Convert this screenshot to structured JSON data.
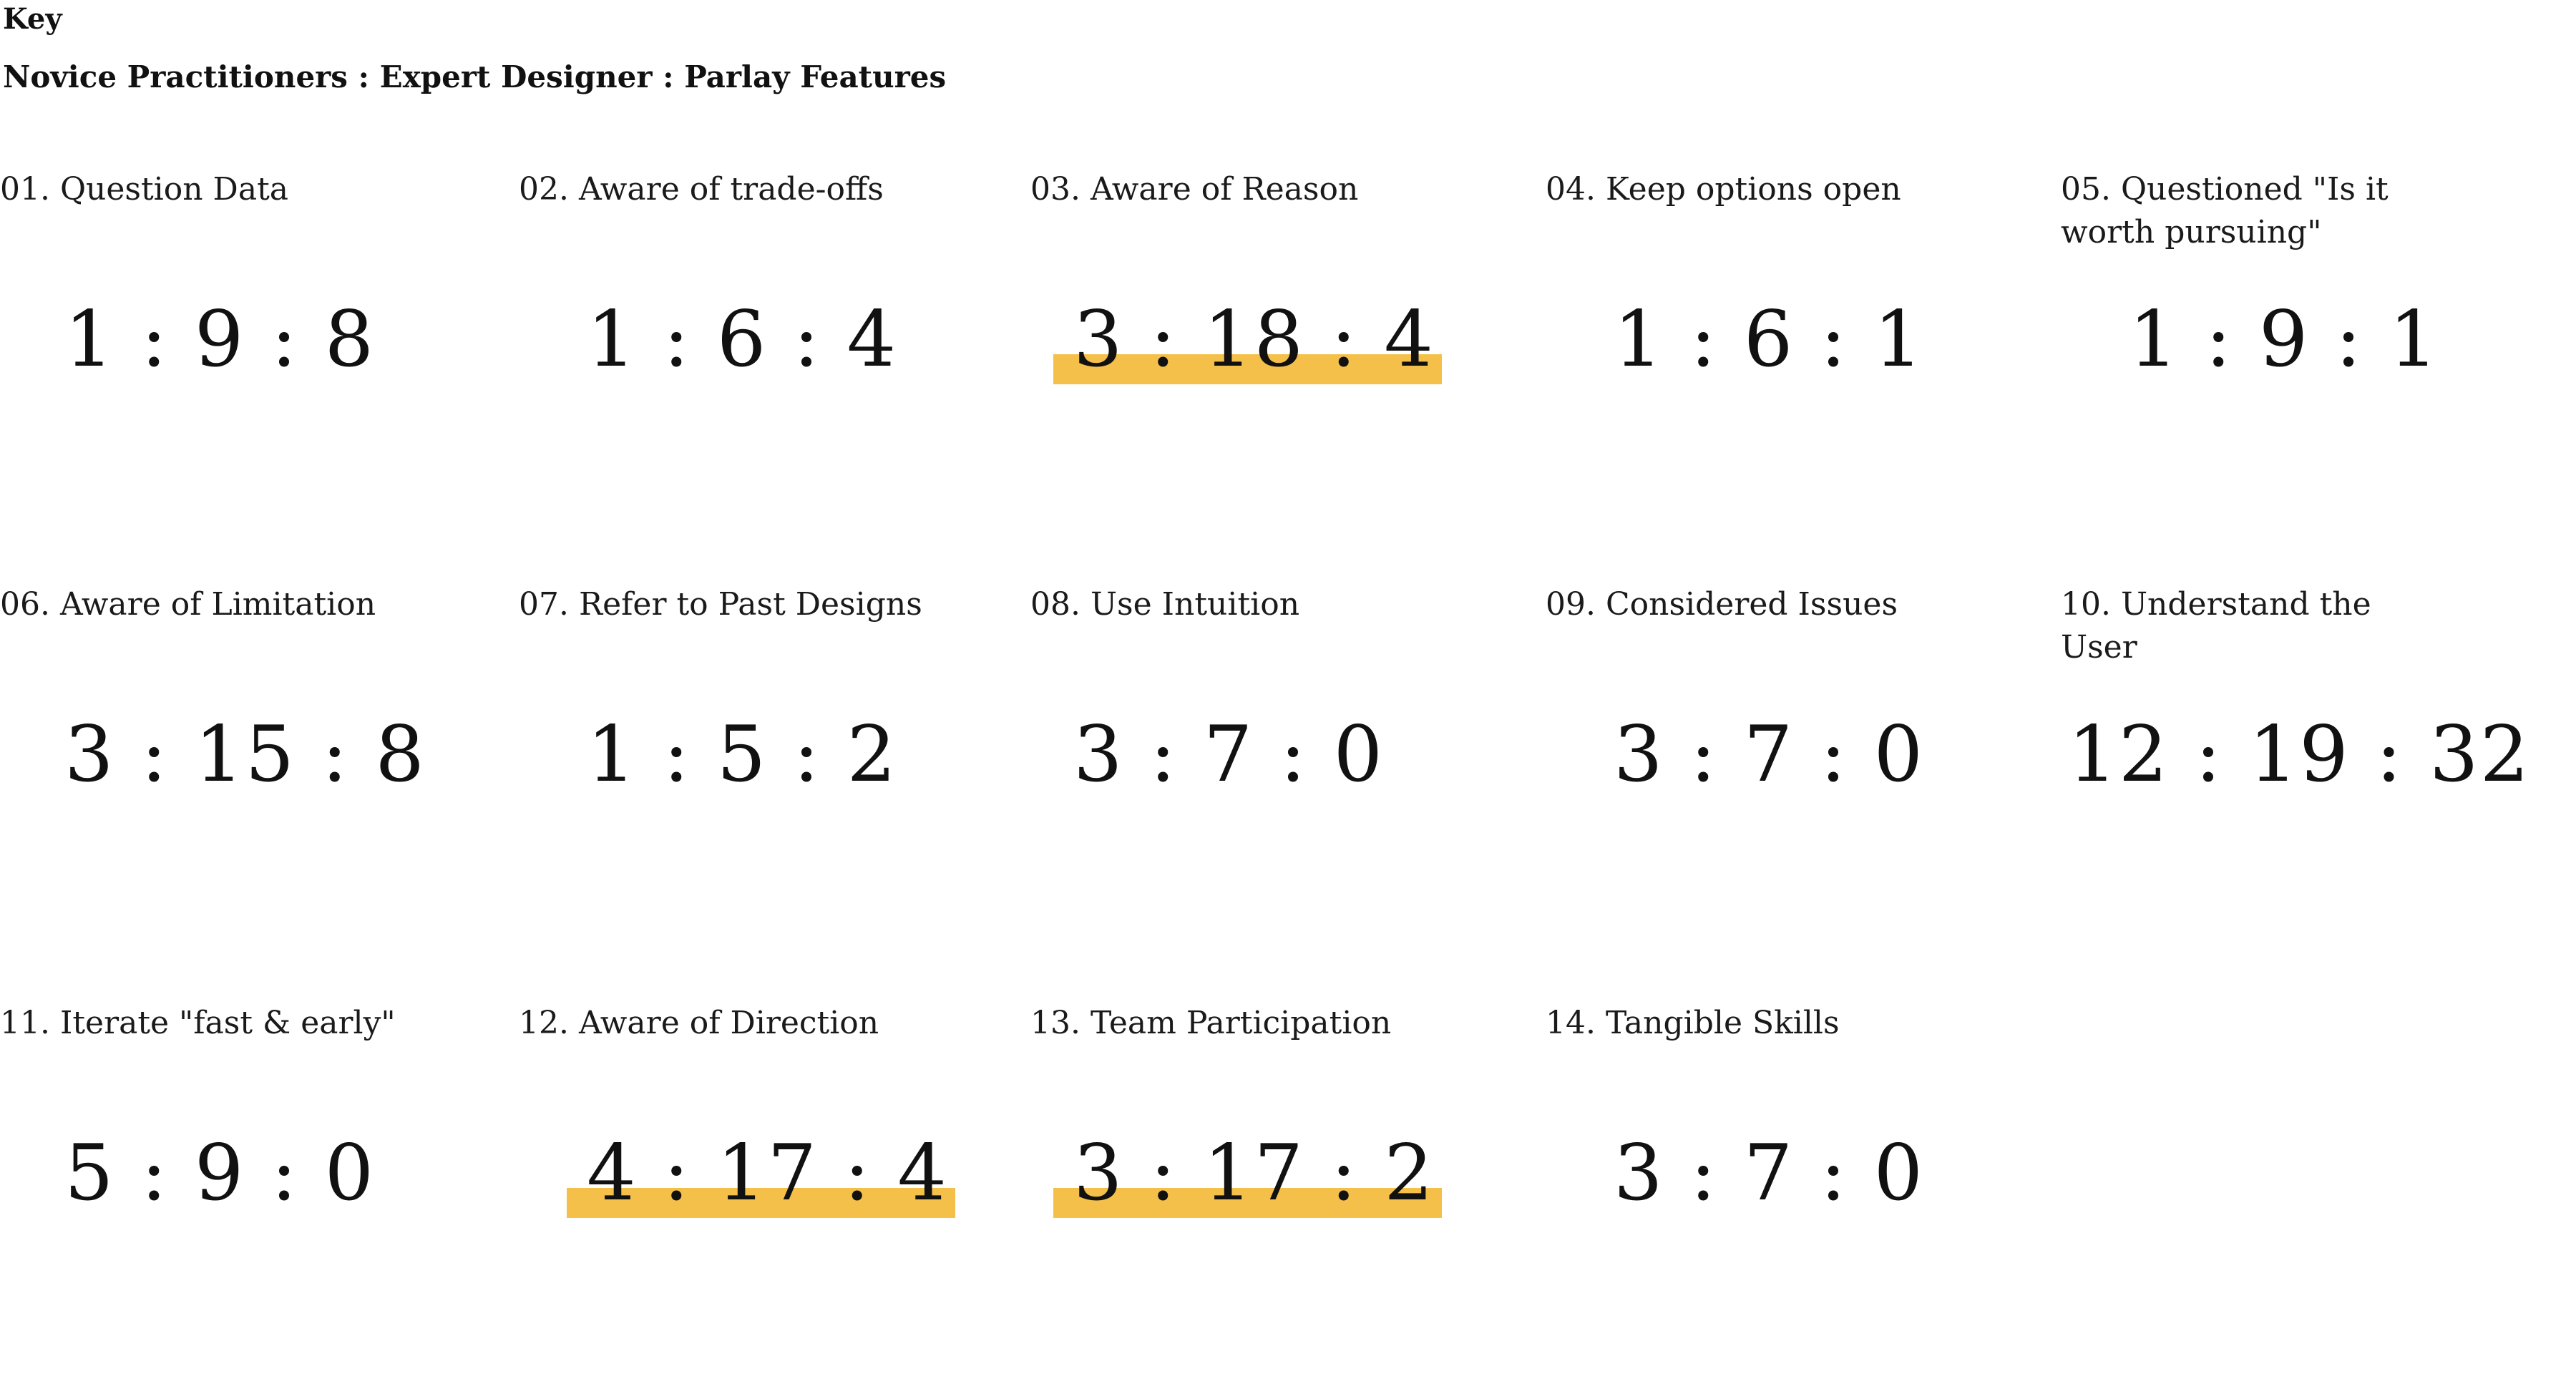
{
  "key": {
    "title": "Key",
    "legend": "Novice Practitioners : Expert Designer : Parlay Features"
  },
  "highlight_color": "#f5c04a",
  "items": [
    {
      "label": "01. Question Data",
      "ratio": "1 : 9 : 8",
      "highlighted": false
    },
    {
      "label": "02. Aware of trade-offs",
      "ratio": "1 : 6 : 4",
      "highlighted": false
    },
    {
      "label": "03. Aware of Reason",
      "ratio": "3 : 18 : 4",
      "highlighted": true
    },
    {
      "label": "04. Keep options open",
      "ratio": "1 : 6 : 1",
      "highlighted": false
    },
    {
      "label": "05. Questioned \"Is it worth pursuing\"",
      "ratio": "1 : 9 : 1",
      "highlighted": false
    },
    {
      "label": "06. Aware of Limitation",
      "ratio": "3 : 15 : 8",
      "highlighted": false
    },
    {
      "label": "07. Refer to Past Designs",
      "ratio": "1 : 5 : 2",
      "highlighted": false
    },
    {
      "label": "08. Use Intuition",
      "ratio": "3 : 7 : 0",
      "highlighted": false
    },
    {
      "label": "09. Considered Issues",
      "ratio": "3 : 7 : 0",
      "highlighted": false
    },
    {
      "label": "10. Understand the User",
      "ratio": "12 : 19 : 32",
      "highlighted": false
    },
    {
      "label": "11. Iterate \"fast & early\"",
      "ratio": "5 : 9 : 0",
      "highlighted": false
    },
    {
      "label": "12. Aware of Direction",
      "ratio": "4 : 17 : 4",
      "highlighted": true
    },
    {
      "label": "13. Team Participation",
      "ratio": "3 : 17 : 2",
      "highlighted": true
    },
    {
      "label": "14. Tangible Skills",
      "ratio": "3 : 7 : 0",
      "highlighted": false
    }
  ]
}
